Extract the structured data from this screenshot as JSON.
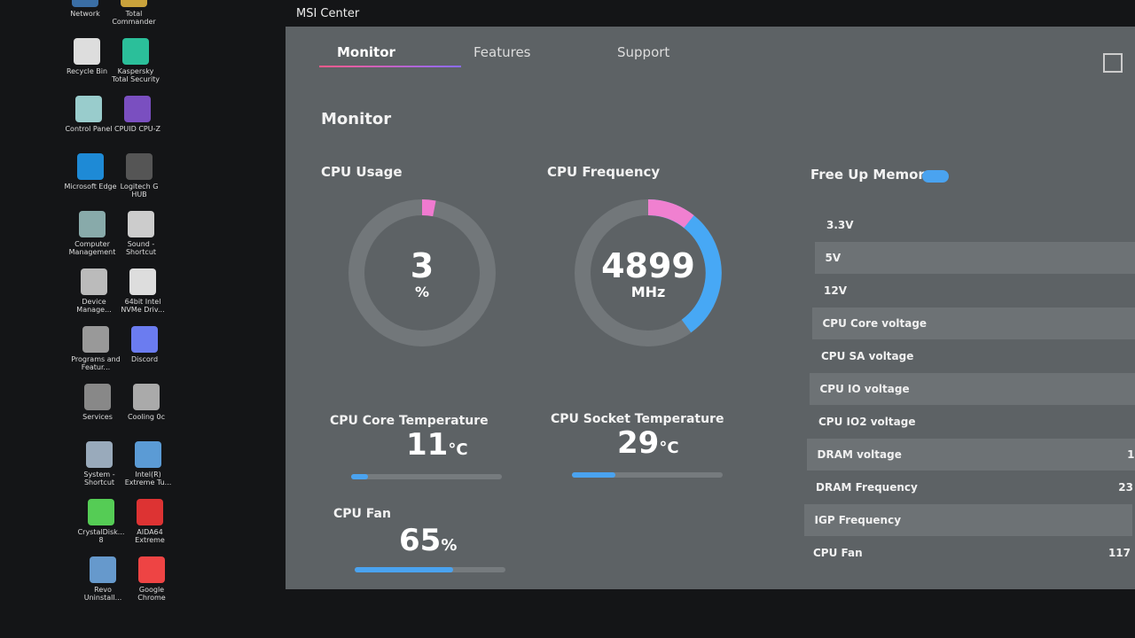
{
  "desktop_icons": [
    "Network",
    "Total Commander",
    "Recycle Bin",
    "Kaspersky Total Security",
    "Control Panel",
    "CPUID CPU-Z",
    "Microsoft Edge",
    "Logitech G HUB",
    "Computer Management",
    "Sound - Shortcut",
    "Device Manage...",
    "64bit Intel NVMe Driv...",
    "Programs and Featur...",
    "Discord",
    "Services",
    "Cooling 0c",
    "System - Shortcut",
    "Intel(R) Extreme Tu...",
    "CrystalDisk... 8",
    "AIDA64 Extreme",
    "Revo Uninstall...",
    "Google Chrome"
  ],
  "window": {
    "title": "MSI Center",
    "tabs": [
      "Monitor",
      "Features",
      "Support"
    ],
    "section_title": "Monitor",
    "cpu_usage": {
      "label": "CPU Usage",
      "value": 3,
      "unit": "%"
    },
    "cpu_frequency": {
      "label": "CPU Frequency",
      "value": 4899,
      "unit": "MHz"
    },
    "cpu_core_temperature": {
      "label": "CPU Core Temperature",
      "value": 11,
      "unit": "°C"
    },
    "cpu_socket_temperature": {
      "label": "CPU Socket Temperature",
      "value": 29,
      "unit": "°C"
    },
    "cpu_fan": {
      "label": "CPU Fan",
      "value": 65,
      "unit": "%"
    },
    "free_up_memory": "Free Up Memory",
    "readings": [
      {
        "label": "3.3V"
      },
      {
        "label": "5V"
      },
      {
        "label": "12V"
      },
      {
        "label": "CPU Core voltage"
      },
      {
        "label": "CPU SA voltage"
      },
      {
        "label": "CPU IO voltage"
      },
      {
        "label": "CPU IO2 voltage"
      },
      {
        "label": "DRAM voltage",
        "value": "1"
      },
      {
        "label": "DRAM Frequency",
        "value": "23"
      },
      {
        "label": "IGP Frequency"
      },
      {
        "label": "CPU Fan",
        "value": "117"
      }
    ]
  }
}
